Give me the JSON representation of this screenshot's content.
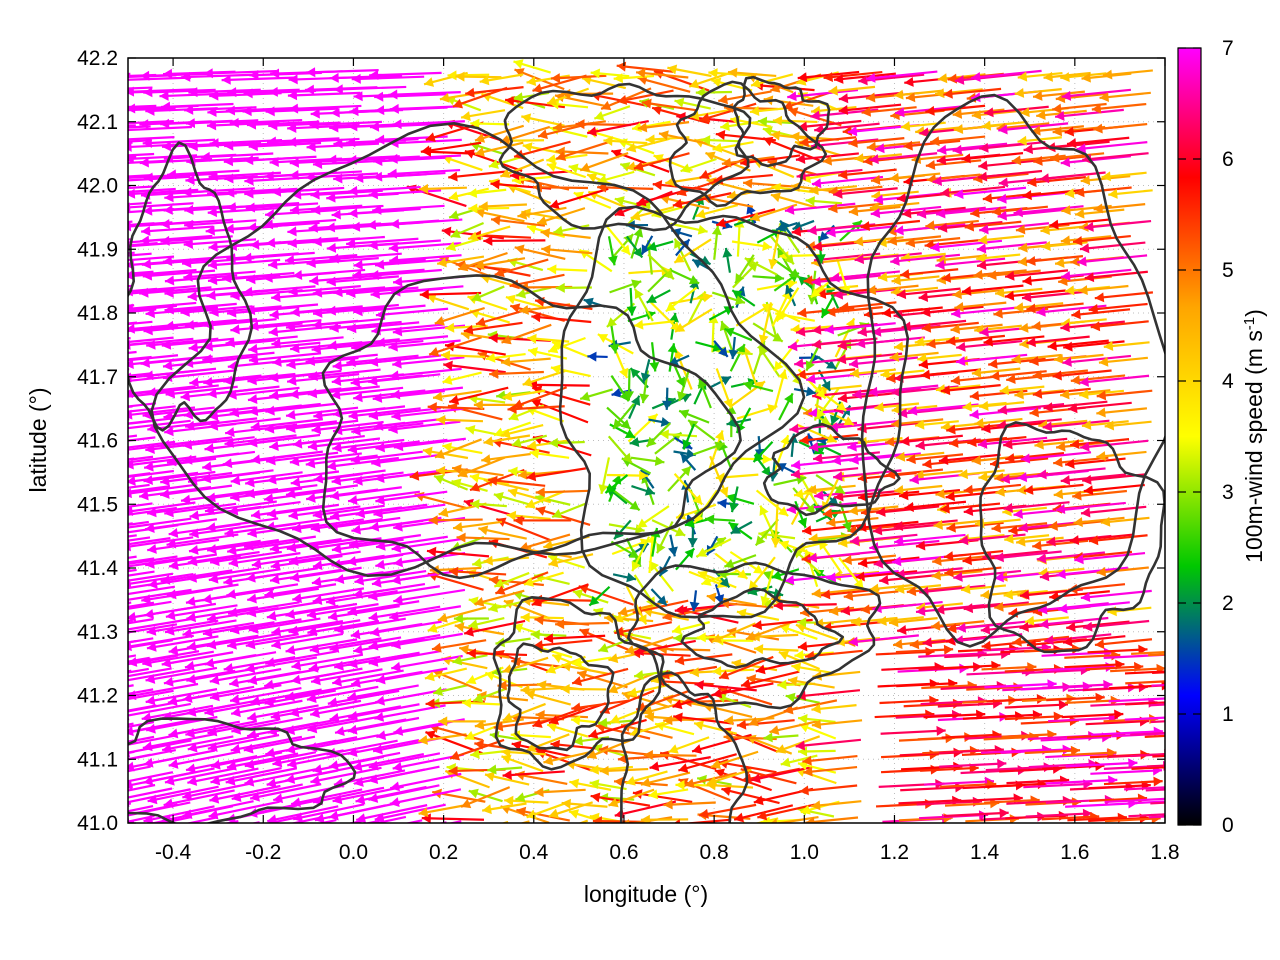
{
  "chart_data": {
    "type": "vector-field",
    "xlabel": "longitude (°)",
    "ylabel": "latitude (°)",
    "xlim": [
      -0.5,
      1.8
    ],
    "ylim": [
      41.0,
      42.2
    ],
    "xticks": [
      "-0.4",
      "-0.2",
      "0.0",
      "0.2",
      "0.4",
      "0.6",
      "0.8",
      "1.0",
      "1.2",
      "1.4",
      "1.6",
      "1.8"
    ],
    "xtick_values": [
      -0.4,
      -0.2,
      0.0,
      0.2,
      0.4,
      0.6,
      0.8,
      1.0,
      1.2,
      1.4,
      1.6,
      1.8
    ],
    "yticks": [
      "41.0",
      "41.1",
      "41.2",
      "41.3",
      "41.4",
      "41.5",
      "41.6",
      "41.7",
      "41.8",
      "41.9",
      "42.0",
      "42.1",
      "42.2"
    ],
    "ytick_values": [
      41.0,
      41.1,
      41.2,
      41.3,
      41.4,
      41.5,
      41.6,
      41.7,
      41.8,
      41.9,
      42.0,
      42.1,
      42.2
    ],
    "grid": true,
    "colorbar": {
      "label_main": "100m-wind speed (m s",
      "label_sup": "-1",
      "label_close": ")",
      "range": [
        0,
        7
      ],
      "ticks": [
        "0",
        "1",
        "2",
        "3",
        "4",
        "5",
        "6",
        "7"
      ],
      "tick_values": [
        0,
        1,
        2,
        3,
        4,
        5,
        6,
        7
      ],
      "colors": [
        "#000000",
        "#0000ff",
        "#00c800",
        "#ffff00",
        "#ffa500",
        "#ff0000",
        "#ff00ff"
      ]
    },
    "wind_regimes": [
      {
        "region": "west (lon < 0.2)",
        "direction": "westward (toward west)",
        "speed_m_s": 7
      },
      {
        "region": "center (lon 0.6-1.0, lat 41.4-41.9)",
        "direction": "weak, variable",
        "speed_m_s": 2.5
      },
      {
        "region": "east (lon > 1.2, lat > 41.4)",
        "direction": "westward",
        "speed_m_s": 5.5
      },
      {
        "region": "southeast (lon > 1.1, lat < 41.3)",
        "direction": "eastward (toward east)",
        "speed_m_s": 5
      }
    ],
    "contour_color": "#333333"
  }
}
